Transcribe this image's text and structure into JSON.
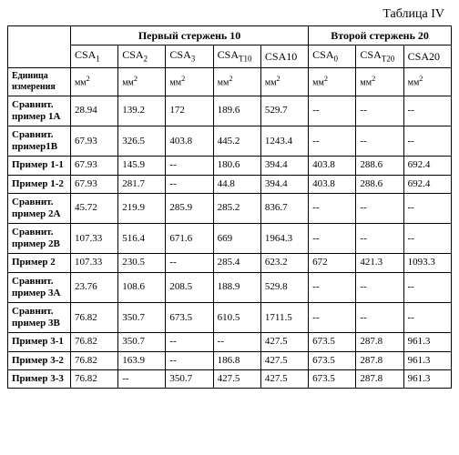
{
  "caption": "Таблица IV",
  "group_headers": {
    "first": "Первый стержень 10",
    "second": "Второй стержень 20"
  },
  "column_headers": {
    "label": "",
    "c1": "CSA",
    "c1_sub": "1",
    "c2": "CSA",
    "c2_sub": "2",
    "c3": "CSA",
    "c3_sub": "3",
    "c4": "CSA",
    "c4_sub": "T10",
    "c5": "CSA10",
    "c6": "CSA",
    "c6_sub": "0",
    "c7": "CSA",
    "c7_sub": "T20",
    "c8": "CSA20"
  },
  "unit_row": {
    "label": "Единица измерения",
    "u": "мм",
    "u_sup": "2"
  },
  "rows": [
    {
      "label": "Сравнит. пример 1A",
      "v": [
        "28.94",
        "139.2",
        "172",
        "189.6",
        "529.7",
        "--",
        "--",
        "--"
      ]
    },
    {
      "label": "Сравнит. пример1B",
      "v": [
        "67.93",
        "326.5",
        "403.8",
        "445.2",
        "1243.4",
        "--",
        "--",
        "--"
      ]
    },
    {
      "label": "Пример 1-1",
      "v": [
        "67.93",
        "145.9",
        "--",
        "180.6",
        "394.4",
        "403.8",
        "288.6",
        "692.4"
      ]
    },
    {
      "label": "Пример 1-2",
      "v": [
        "67.93",
        "281.7",
        "--",
        "44.8",
        "394.4",
        "403.8",
        "288.6",
        "692.4"
      ]
    },
    {
      "label": "Сравнит. пример 2A",
      "v": [
        "45.72",
        "219.9",
        "285.9",
        "285.2",
        "836.7",
        "--",
        "--",
        "--"
      ]
    },
    {
      "label": "Сравнит. пример 2B",
      "v": [
        "107.33",
        "516.4",
        "671.6",
        "669",
        "1964.3",
        "--",
        "--",
        "--"
      ]
    },
    {
      "label": "Пример 2",
      "v": [
        "107.33",
        "230.5",
        "--",
        "285.4",
        "623.2",
        "672",
        "421.3",
        "1093.3"
      ]
    },
    {
      "label": "Сравнит. пример 3A",
      "v": [
        "23.76",
        "108.6",
        "208.5",
        "188.9",
        "529.8",
        "--",
        "--",
        "--"
      ]
    },
    {
      "label": "Сравнит. пример 3B",
      "v": [
        "76.82",
        "350.7",
        "673.5",
        "610.5",
        "1711.5",
        "--",
        "--",
        "--"
      ]
    },
    {
      "label": "Пример 3-1",
      "v": [
        "76.82",
        "350.7",
        "--",
        "--",
        "427.5",
        "673.5",
        "287.8",
        "961.3"
      ]
    },
    {
      "label": "Пример 3-2",
      "v": [
        "76.82",
        "163.9",
        "--",
        "186.8",
        "427.5",
        "673.5",
        "287.8",
        "961.3"
      ]
    },
    {
      "label": "Пример 3-3",
      "v": [
        "76.82",
        "--",
        "350.7",
        "427.5",
        "427.5",
        "673.5",
        "287.8",
        "961.3"
      ]
    }
  ],
  "colors": {
    "background": "#ffffff",
    "text": "#000000",
    "border": "#000000"
  }
}
